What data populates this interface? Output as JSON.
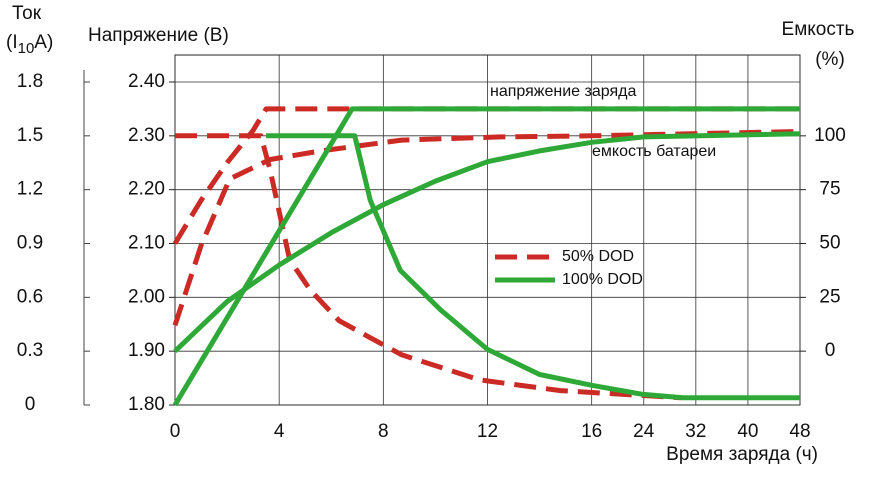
{
  "chart_data": {
    "type": "line",
    "x_label": "Время заряда (ч)",
    "xticks": [
      0,
      4,
      8,
      12,
      16,
      24,
      32,
      40,
      48
    ],
    "xlim": [
      0,
      48
    ],
    "y_label": "Напряжение (В)",
    "ylim": [
      1.8,
      2.4
    ],
    "yticks": [
      {
        "value": 1.8,
        "label": "1.80"
      },
      {
        "value": 1.9,
        "label": "1.90"
      },
      {
        "value": 2.0,
        "label": "2.00"
      },
      {
        "value": 2.1,
        "label": "2.10"
      },
      {
        "value": 2.2,
        "label": "2.20"
      },
      {
        "value": 2.3,
        "label": "2.30"
      },
      {
        "value": 2.4,
        "label": "2.40"
      }
    ],
    "y2_label": [
      "Емкость",
      "(%)"
    ],
    "y2lim": [
      -25,
      125
    ],
    "y2ticks": [
      0,
      25,
      50,
      75,
      100
    ],
    "y3_label": [
      "Ток",
      "(I",
      "10",
      "A)"
    ],
    "y3lim": [
      0,
      1.8
    ],
    "y3ticks": [
      0,
      0.3,
      0.6,
      0.9,
      1.2,
      1.5,
      1.8
    ],
    "grid": true,
    "annotations": [
      "напряжение заряда",
      "емкость батареи"
    ],
    "series": [
      {
        "name": "50% DOD",
        "color": "#cc2a24",
        "dashed": true,
        "lines": [
          {
            "axis": "y",
            "x": [
              0,
              1,
              2,
              3,
              3.5,
              48
            ],
            "values": [
              2.1,
              2.18,
              2.25,
              2.31,
              2.35,
              2.35
            ]
          },
          {
            "axis": "y3",
            "x": [
              0,
              3.3,
              3.65,
              4.4,
              5.2,
              6.3,
              8.7,
              11.7,
              14.8,
              29.8
            ],
            "values": [
              1.5,
              1.5,
              1.31,
              0.81,
              0.64,
              0.47,
              0.28,
              0.14,
              0.08,
              0.04
            ]
          },
          {
            "axis": "y2",
            "x": [
              0,
              1,
              2.1,
              3.65,
              5.6,
              8.7,
              12.5,
              16,
              48
            ],
            "values": [
              12,
              49,
              80,
              89,
              93,
              98,
              99.5,
              100,
              102
            ]
          }
        ]
      },
      {
        "name": "100% DOD",
        "color": "#2ea836",
        "dashed": false,
        "lines": [
          {
            "axis": "y",
            "x": [
              0,
              6.8,
              48
            ],
            "values": [
              1.8,
              2.35,
              2.35
            ]
          },
          {
            "axis": "y3",
            "x": [
              3.5,
              6.9,
              7.5,
              8.65,
              10.2,
              12,
              14,
              16,
              23.7,
              30,
              48
            ],
            "values": [
              1.5,
              1.5,
              1.14,
              0.75,
              0.53,
              0.31,
              0.17,
              0.11,
              0.06,
              0.04,
              0.04
            ]
          },
          {
            "axis": "y2",
            "x": [
              0,
              2,
              4,
              6,
              8,
              10,
              12,
              14,
              16,
              24,
              48
            ],
            "values": [
              0,
              23,
              40,
              55,
              68,
              79,
              88,
              93,
              97,
              99.5,
              101
            ]
          }
        ]
      }
    ]
  }
}
